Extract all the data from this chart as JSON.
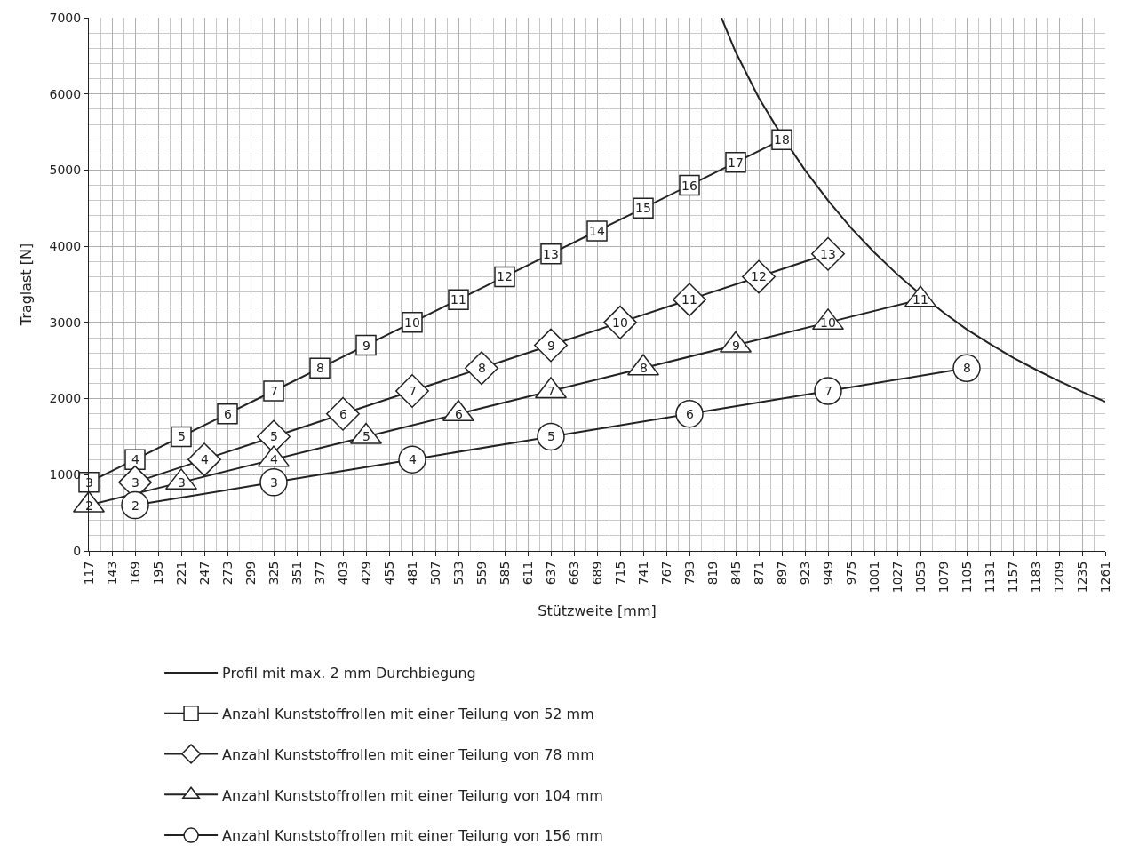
{
  "chart_data": {
    "type": "line",
    "xlabel": "Stützweite [mm]",
    "ylabel": "Traglast [N]",
    "xlim": [
      117,
      1261
    ],
    "xticks": [
      117,
      143,
      169,
      195,
      221,
      247,
      273,
      299,
      325,
      351,
      377,
      403,
      429,
      455,
      481,
      507,
      533,
      559,
      585,
      611,
      637,
      663,
      689,
      715,
      741,
      767,
      793,
      819,
      845,
      871,
      897,
      923,
      949,
      975,
      1001,
      1027,
      1053,
      1079,
      1105,
      1131,
      1157,
      1183,
      1209,
      1235,
      1261
    ],
    "ylim": [
      0,
      7000
    ],
    "yticks": [
      0,
      1000,
      2000,
      3000,
      4000,
      5000,
      6000,
      7000
    ],
    "grid": true,
    "legend": "bottom",
    "series": [
      {
        "name": "Profil mit max. 2 mm Durchbiegung",
        "color": "#222222",
        "marker": "none",
        "x": [
          829,
          845,
          871,
          897,
          923,
          949,
          975,
          1001,
          1027,
          1053,
          1079,
          1105,
          1131,
          1157,
          1183,
          1209,
          1235,
          1261
        ],
        "values": [
          7000,
          6550,
          5950,
          5450,
          5000,
          4600,
          4240,
          3920,
          3630,
          3370,
          3130,
          2910,
          2720,
          2540,
          2380,
          2230,
          2090,
          1960
        ]
      },
      {
        "name": "Anzahl Kunststoffrollen mit einer Teilung von 52 mm",
        "color": "#222222",
        "marker": "square",
        "x": [
          117,
          169,
          221,
          273,
          325,
          377,
          429,
          481,
          533,
          585,
          637,
          689,
          741,
          793,
          845,
          897
        ],
        "values": [
          900,
          1200,
          1500,
          1800,
          2100,
          2400,
          2700,
          3000,
          3300,
          3600,
          3900,
          4200,
          4500,
          4800,
          5100,
          5400
        ]
      },
      {
        "name": "Anzahl Kunststoffrollen mit einer Teilung von 78 mm",
        "color": "#222222",
        "marker": "diamond",
        "x": [
          169,
          247,
          325,
          403,
          481,
          559,
          637,
          715,
          793,
          871,
          949
        ],
        "values": [
          900,
          1200,
          1500,
          1800,
          2100,
          2400,
          2700,
          3000,
          3300,
          3600,
          3900
        ]
      },
      {
        "name": "Anzahl Kunststoffrollen mit einer Teilung von 104 mm",
        "color": "#222222",
        "marker": "triangle",
        "x": [
          117,
          221,
          325,
          429,
          533,
          637,
          741,
          845,
          949,
          1053
        ],
        "values": [
          600,
          900,
          1200,
          1500,
          1800,
          2100,
          2400,
          2700,
          3000,
          3300
        ]
      },
      {
        "name": "Anzahl Kunststoffrollen mit einer Teilung von 156 mm",
        "color": "#222222",
        "marker": "circle",
        "x": [
          169,
          325,
          481,
          637,
          793,
          949,
          1105
        ],
        "values": [
          600,
          900,
          1200,
          1500,
          1800,
          2100,
          2400
        ]
      }
    ],
    "annotations": [
      {
        "text": "3",
        "x": 117,
        "y": 900
      },
      {
        "text": "4",
        "x": 169,
        "y": 1200
      },
      {
        "text": "5",
        "x": 221,
        "y": 1500
      },
      {
        "text": "6",
        "x": 273,
        "y": 1800
      },
      {
        "text": "7",
        "x": 325,
        "y": 2100
      },
      {
        "text": "8",
        "x": 377,
        "y": 2400
      },
      {
        "text": "9",
        "x": 429,
        "y": 2700
      },
      {
        "text": "10",
        "x": 481,
        "y": 3000
      },
      {
        "text": "11",
        "x": 533,
        "y": 3300
      },
      {
        "text": "12",
        "x": 585,
        "y": 3600
      },
      {
        "text": "13",
        "x": 637,
        "y": 3900
      },
      {
        "text": "14",
        "x": 689,
        "y": 4200
      },
      {
        "text": "15",
        "x": 741,
        "y": 4500
      },
      {
        "text": "16",
        "x": 793,
        "y": 4800
      },
      {
        "text": "17",
        "x": 845,
        "y": 5100
      },
      {
        "text": "18",
        "x": 897,
        "y": 5400
      },
      {
        "text": "3",
        "x": 169,
        "y": 900
      },
      {
        "text": "4",
        "x": 247,
        "y": 1200
      },
      {
        "text": "5",
        "x": 325,
        "y": 1500
      },
      {
        "text": "6",
        "x": 403,
        "y": 1800
      },
      {
        "text": "7",
        "x": 481,
        "y": 2100
      },
      {
        "text": "8",
        "x": 559,
        "y": 2400
      },
      {
        "text": "9",
        "x": 637,
        "y": 2700
      },
      {
        "text": "10",
        "x": 715,
        "y": 3000
      },
      {
        "text": "11",
        "x": 793,
        "y": 3300
      },
      {
        "text": "12",
        "x": 871,
        "y": 3600
      },
      {
        "text": "13",
        "x": 949,
        "y": 3900
      },
      {
        "text": "2",
        "x": 117,
        "y": 600
      },
      {
        "text": "3",
        "x": 221,
        "y": 900
      },
      {
        "text": "4",
        "x": 325,
        "y": 1200
      },
      {
        "text": "5",
        "x": 429,
        "y": 1500
      },
      {
        "text": "6",
        "x": 533,
        "y": 1800
      },
      {
        "text": "7",
        "x": 637,
        "y": 2100
      },
      {
        "text": "8",
        "x": 741,
        "y": 2400
      },
      {
        "text": "9",
        "x": 845,
        "y": 2700
      },
      {
        "text": "10",
        "x": 949,
        "y": 3000
      },
      {
        "text": "11",
        "x": 1053,
        "y": 3300
      },
      {
        "text": "2",
        "x": 169,
        "y": 600
      },
      {
        "text": "3",
        "x": 325,
        "y": 900
      },
      {
        "text": "4",
        "x": 481,
        "y": 1200
      },
      {
        "text": "5",
        "x": 637,
        "y": 1500
      },
      {
        "text": "6",
        "x": 793,
        "y": 1800
      },
      {
        "text": "7",
        "x": 949,
        "y": 2100
      },
      {
        "text": "8",
        "x": 1105,
        "y": 2400
      }
    ]
  }
}
